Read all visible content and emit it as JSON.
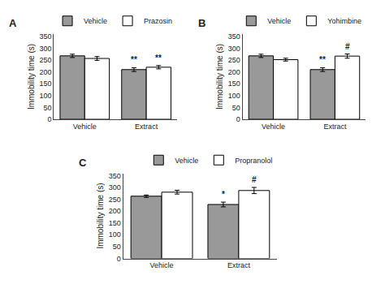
{
  "chart_data": [
    {
      "type": "bar",
      "title": "A",
      "categories": [
        "Vehicle",
        "Extract"
      ],
      "series": [
        {
          "name": "Vehicle",
          "color": "#999999",
          "values": [
            268,
            210
          ],
          "errors": [
            7,
            8
          ]
        },
        {
          "name": "Prazosin",
          "color": "#ffffff",
          "values": [
            257,
            220
          ],
          "errors": [
            8,
            7
          ]
        }
      ],
      "ylabel": "Immobility time (s)",
      "ylim": [
        0,
        360
      ],
      "yticks": [
        0,
        50,
        100,
        150,
        200,
        250,
        300,
        350
      ],
      "grid": false,
      "legend": "upper right",
      "annotations": [
        {
          "category": "Extract",
          "series": "Vehicle",
          "text": "**"
        },
        {
          "category": "Extract",
          "series": "Prazosin",
          "text": "**"
        }
      ]
    },
    {
      "type": "bar",
      "title": "B",
      "categories": [
        "Vehicle",
        "Extract"
      ],
      "series": [
        {
          "name": "Vehicle",
          "color": "#999999",
          "values": [
            268,
            210
          ],
          "errors": [
            7,
            8
          ]
        },
        {
          "name": "Yohimbine",
          "color": "#ffffff",
          "values": [
            252,
            267
          ],
          "errors": [
            6,
            9
          ]
        }
      ],
      "ylabel": "Immobility time (s)",
      "ylim": [
        0,
        360
      ],
      "yticks": [
        0,
        50,
        100,
        150,
        200,
        250,
        300,
        350
      ],
      "grid": false,
      "legend": "upper right",
      "annotations": [
        {
          "category": "Extract",
          "series": "Vehicle",
          "text": "**"
        },
        {
          "category": "Extract",
          "series": "Yohimbine",
          "text": "#"
        }
      ]
    },
    {
      "type": "bar",
      "title": "C",
      "categories": [
        "Vehicle",
        "Extract"
      ],
      "series": [
        {
          "name": "Vehicle",
          "color": "#999999",
          "values": [
            263,
            228
          ],
          "errors": [
            5,
            10
          ]
        },
        {
          "name": "Propranolol",
          "color": "#ffffff",
          "values": [
            280,
            287
          ],
          "errors": [
            8,
            13
          ]
        }
      ],
      "ylabel": "Immobility time (s)",
      "ylim": [
        0,
        360
      ],
      "yticks": [
        0,
        50,
        100,
        150,
        200,
        250,
        300,
        350
      ],
      "grid": false,
      "legend": "upper right",
      "annotations": [
        {
          "category": "Extract",
          "series": "Vehicle",
          "text": "*"
        },
        {
          "category": "Extract",
          "series": "Propranolol",
          "text": "#"
        }
      ]
    }
  ]
}
